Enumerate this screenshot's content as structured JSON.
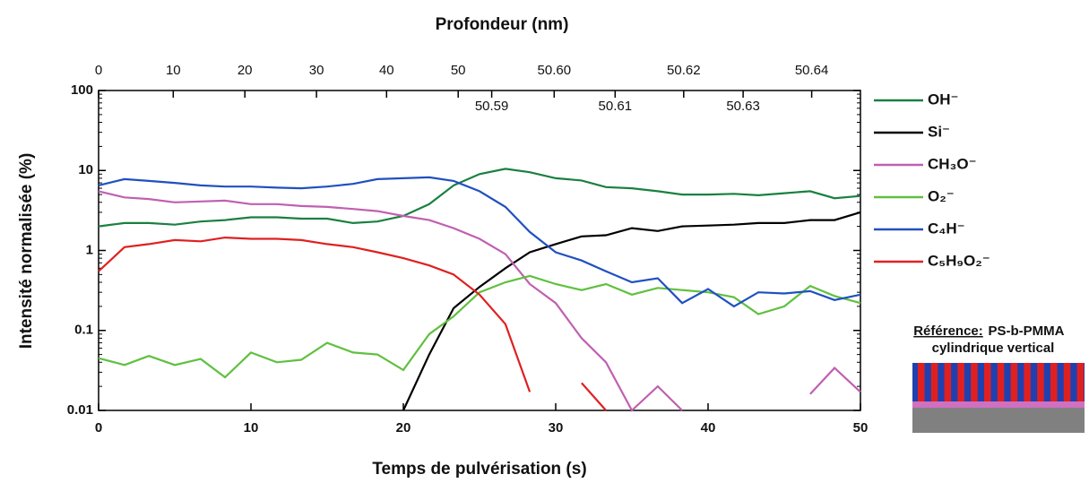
{
  "chart_data": {
    "type": "line",
    "x2_label": "Profondeur (nm)",
    "x_label": "Temps de pulvérisation (s)",
    "y_label": "Intensité normalisée (%)",
    "log_y": true,
    "xlim": [
      0,
      50
    ],
    "xticks": [
      0,
      10,
      20,
      30,
      40,
      50
    ],
    "ylim": [
      0.01,
      100
    ],
    "yticks": [
      0.01,
      0.1,
      1,
      10,
      100
    ],
    "x2ticks": [
      {
        "value": 0,
        "label": "0"
      },
      {
        "value": 4.9,
        "label": "10"
      },
      {
        "value": 9.6,
        "label": "20"
      },
      {
        "value": 14.3,
        "label": "30"
      },
      {
        "value": 18.9,
        "label": "40"
      },
      {
        "value": 23.6,
        "label": "50"
      },
      {
        "value": 29.9,
        "label": "50.60"
      },
      {
        "value": 38.4,
        "label": "50.62"
      },
      {
        "value": 46.8,
        "label": "50.64"
      }
    ],
    "x2ticks_inside": [
      {
        "value": 25.8,
        "label": "50.59"
      },
      {
        "value": 33.9,
        "label": "50.61"
      },
      {
        "value": 42.3,
        "label": "50.63"
      }
    ],
    "x": [
      0,
      1.7,
      3.3,
      5,
      6.7,
      8.3,
      10,
      11.7,
      13.3,
      15,
      16.7,
      18.3,
      20,
      21.7,
      23.3,
      25,
      26.7,
      28.3,
      30,
      31.7,
      33.3,
      35,
      36.7,
      38.3,
      40,
      41.7,
      43.3,
      45,
      46.7,
      48.3,
      50
    ],
    "series": [
      {
        "name": "OH⁻",
        "color": "#1a8040",
        "values": [
          2.0,
          2.2,
          2.2,
          2.1,
          2.3,
          2.4,
          2.6,
          2.6,
          2.5,
          2.5,
          2.2,
          2.3,
          2.7,
          3.8,
          6.5,
          9,
          10.5,
          9.5,
          8,
          7.5,
          6.2,
          6,
          5.5,
          5,
          5,
          5.1,
          4.9,
          5.2,
          5.5,
          4.5,
          4.8
        ]
      },
      {
        "name": "Si⁻",
        "color": "#000000",
        "values": [
          null,
          null,
          null,
          null,
          null,
          null,
          null,
          null,
          null,
          null,
          null,
          null,
          0.01,
          0.05,
          0.19,
          0.35,
          0.6,
          0.95,
          1.2,
          1.5,
          1.55,
          1.9,
          1.75,
          2.0,
          2.05,
          2.1,
          2.2,
          2.2,
          2.4,
          2.4,
          3.0
        ]
      },
      {
        "name": "CH₃O⁻",
        "color": "#c060b0",
        "values": [
          5.5,
          4.6,
          4.4,
          4.0,
          4.1,
          4.2,
          3.8,
          3.8,
          3.6,
          3.5,
          3.3,
          3.1,
          2.7,
          2.4,
          1.9,
          1.4,
          0.9,
          0.38,
          0.22,
          0.08,
          0.04,
          0.01,
          0.02,
          0.01,
          null,
          null,
          null,
          null,
          0.016,
          0.034,
          0.017
        ]
      },
      {
        "name": "O₂⁻",
        "color": "#60c040",
        "values": [
          0.045,
          0.037,
          0.048,
          0.037,
          0.044,
          0.026,
          0.053,
          0.04,
          0.043,
          0.07,
          0.053,
          0.05,
          0.032,
          0.09,
          0.15,
          0.3,
          0.4,
          0.48,
          0.38,
          0.32,
          0.38,
          0.28,
          0.34,
          0.32,
          0.3,
          0.26,
          0.16,
          0.2,
          0.36,
          0.27,
          0.22
        ]
      },
      {
        "name": "C₄H⁻",
        "color": "#2050c0",
        "values": [
          6.5,
          7.8,
          7.4,
          7.0,
          6.5,
          6.3,
          6.3,
          6.1,
          6.0,
          6.3,
          6.8,
          7.8,
          8.0,
          8.2,
          7.4,
          5.5,
          3.5,
          1.7,
          0.95,
          0.75,
          0.55,
          0.4,
          0.45,
          0.22,
          0.33,
          0.2,
          0.3,
          0.29,
          0.31,
          0.24,
          0.28
        ]
      },
      {
        "name": "C₅H₉O₂⁻",
        "color": "#e02020",
        "values": [
          0.55,
          1.1,
          1.2,
          1.35,
          1.3,
          1.45,
          1.4,
          1.4,
          1.35,
          1.2,
          1.1,
          0.95,
          0.8,
          0.65,
          0.5,
          0.28,
          0.12,
          0.017,
          null,
          0.022,
          0.01,
          null,
          null,
          null,
          null,
          null,
          null,
          null,
          null,
          null,
          null
        ]
      }
    ],
    "annotation_title": "Référence:",
    "annotation_material": "PS-b-PMMA",
    "annotation_line2": "cylindrique vertical"
  }
}
